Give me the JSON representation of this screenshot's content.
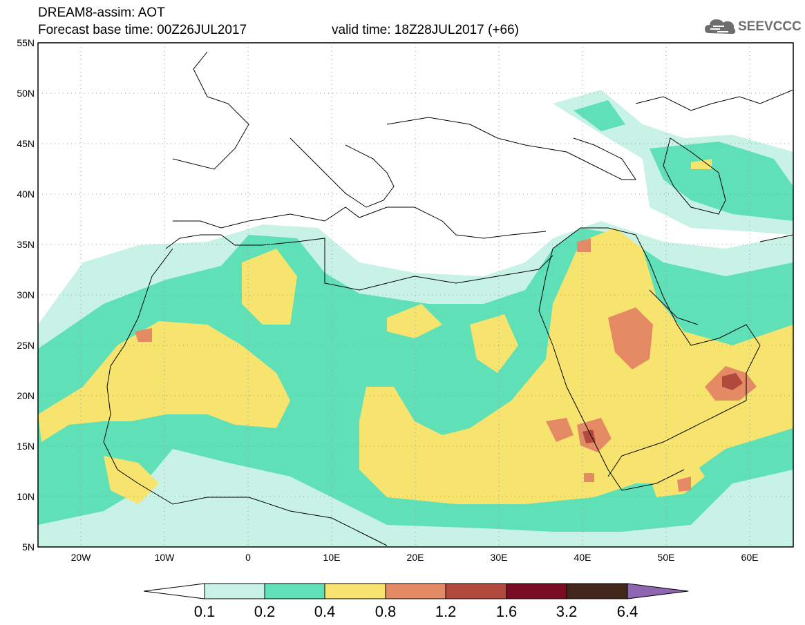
{
  "header": {
    "line1": "DREAM8-assim: AOT",
    "line2": "Forecast base time: 00Z26JUL2017",
    "line3": "valid time: 18Z28JUL2017 (+66)",
    "logo": "SEEVCCC"
  },
  "map": {
    "lon_range": [
      -25,
      65
    ],
    "lat_range": [
      5,
      55
    ],
    "lat_ticks": [
      "55N",
      "50N",
      "45N",
      "40N",
      "35N",
      "30N",
      "25N",
      "20N",
      "15N",
      "10N",
      "5N"
    ],
    "lon_ticks": [
      "20W",
      "10W",
      "0",
      "10E",
      "20E",
      "30E",
      "40E",
      "50E",
      "60E"
    ]
  },
  "colorbar": {
    "labels": [
      "0.1",
      "0.2",
      "0.4",
      "0.8",
      "1.2",
      "1.6",
      "3.2",
      "6.4"
    ],
    "colors": [
      "#ffffff",
      "#c8f2e6",
      "#5fe0b6",
      "#f6e46e",
      "#e48a65",
      "#b14a3d",
      "#7a0b25",
      "#43261a",
      "#8d65b0"
    ]
  }
}
